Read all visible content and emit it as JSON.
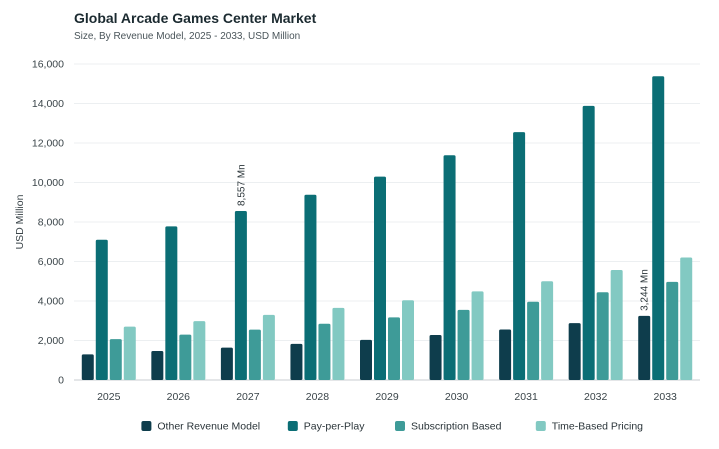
{
  "chart_data": {
    "type": "bar",
    "title": "Global Arcade Games Center Market",
    "subtitle": "Size, By Revenue Model, 2025 - 2033, USD Million",
    "xlabel": "",
    "ylabel": "USD Million",
    "ylim": [
      0,
      16000
    ],
    "yticks": [
      0,
      2000,
      4000,
      6000,
      8000,
      10000,
      12000,
      14000,
      16000
    ],
    "ytick_labels": [
      "0",
      "2,000",
      "4,000",
      "6,000",
      "8,000",
      "10,000",
      "12,000",
      "14,000",
      "16,000"
    ],
    "grid": true,
    "legend_position": "bottom",
    "categories": [
      "2025",
      "2026",
      "2027",
      "2028",
      "2029",
      "2030",
      "2031",
      "2032",
      "2033"
    ],
    "series": [
      {
        "name": "Other Revenue Model",
        "color": "#0e3d4c",
        "values": [
          1300,
          1470,
          1640,
          1830,
          2030,
          2280,
          2560,
          2880,
          3244
        ]
      },
      {
        "name": "Pay-per-Play",
        "color": "#0b6e75",
        "values": [
          7100,
          7780,
          8557,
          9380,
          10300,
          11380,
          12550,
          13880,
          15380
        ]
      },
      {
        "name": "Subscription Based",
        "color": "#3e9b98",
        "values": [
          2070,
          2300,
          2550,
          2850,
          3170,
          3550,
          3960,
          4440,
          4970
        ]
      },
      {
        "name": "Time-Based Pricing",
        "color": "#82c9c2",
        "values": [
          2700,
          2980,
          3300,
          3650,
          4040,
          4490,
          5000,
          5570,
          6200
        ]
      }
    ],
    "annotations": [
      {
        "category": "2027",
        "series": "Pay-per-Play",
        "text": "8,557 Mn"
      },
      {
        "category": "2033",
        "series": "Other Revenue Model",
        "text": "3,244 Mn"
      }
    ]
  }
}
